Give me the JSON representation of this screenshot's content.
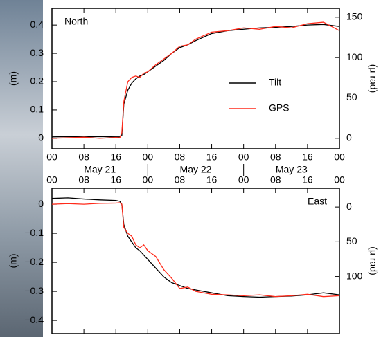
{
  "chart_data": [
    {
      "type": "line",
      "title": "North",
      "ylabel": "(m)",
      "y2label": "(μ rad)",
      "x": [
        0,
        4,
        8,
        12,
        16,
        17,
        17.5,
        18,
        19,
        20,
        21,
        22,
        23,
        24,
        26,
        28,
        30,
        32,
        34,
        36,
        40,
        44,
        48,
        52,
        56,
        60,
        64,
        68,
        72
      ],
      "xlim": [
        0,
        72
      ],
      "xticks": [
        {
          "value": 0,
          "label": "00"
        },
        {
          "value": 8,
          "label": "08"
        },
        {
          "value": 16,
          "label": "16"
        },
        {
          "value": 24,
          "label": "00"
        },
        {
          "value": 32,
          "label": "08"
        },
        {
          "value": 40,
          "label": "16"
        },
        {
          "value": 48,
          "label": "00"
        },
        {
          "value": 56,
          "label": "08"
        },
        {
          "value": 64,
          "label": "16"
        },
        {
          "value": 72,
          "label": "00"
        }
      ],
      "date_labels": [
        {
          "value": 12,
          "label": "May 21"
        },
        {
          "value": 36,
          "label": "May 22"
        },
        {
          "value": 60,
          "label": "May 23"
        }
      ],
      "ylim": [
        -0.037,
        0.459
      ],
      "yticks": [
        0,
        0.1,
        0.2,
        0.3,
        0.4
      ],
      "y2lim": [
        -13,
        161
      ],
      "y2ticks": [
        0,
        50,
        100,
        150
      ],
      "legend": "center-right",
      "series": [
        {
          "name": "Tilt",
          "color": "#000000",
          "values": [
            0.005,
            0.006,
            0.005,
            0.006,
            0.005,
            0.005,
            0.01,
            0.12,
            0.17,
            0.195,
            0.21,
            0.22,
            0.225,
            0.235,
            0.255,
            0.275,
            0.3,
            0.32,
            0.33,
            0.345,
            0.37,
            0.38,
            0.385,
            0.39,
            0.392,
            0.395,
            0.4,
            0.402,
            0.395
          ]
        },
        {
          "name": "GPS",
          "color": "#ff2a1a",
          "values": [
            0.0,
            0.002,
            0.004,
            0.0,
            0.003,
            0.002,
            0.02,
            0.13,
            0.2,
            0.215,
            0.22,
            0.215,
            0.23,
            0.235,
            0.26,
            0.28,
            0.3,
            0.325,
            0.33,
            0.35,
            0.375,
            0.38,
            0.39,
            0.385,
            0.395,
            0.39,
            0.405,
            0.41,
            0.38
          ]
        }
      ]
    },
    {
      "type": "line",
      "title": "East",
      "ylabel": "(m)",
      "y2label": "(μ rad)",
      "x": [
        0,
        4,
        8,
        12,
        16,
        17,
        17.5,
        18,
        19,
        20,
        21,
        22,
        23,
        24,
        26,
        28,
        30,
        32,
        34,
        36,
        40,
        44,
        48,
        52,
        56,
        60,
        64,
        68,
        72
      ],
      "xlim": [
        0,
        72
      ],
      "xticks": [
        {
          "value": 0,
          "label": "00"
        },
        {
          "value": 8,
          "label": "08"
        },
        {
          "value": 16,
          "label": "16"
        },
        {
          "value": 24,
          "label": "00"
        },
        {
          "value": 32,
          "label": "08"
        },
        {
          "value": 40,
          "label": "16"
        },
        {
          "value": 48,
          "label": "00"
        },
        {
          "value": 56,
          "label": "08"
        },
        {
          "value": 64,
          "label": "16"
        },
        {
          "value": 72,
          "label": "00"
        }
      ],
      "ylim": [
        -0.445,
        0.055
      ],
      "yticks": [
        {
          "value": -0.4,
          "label": "−0.4"
        },
        {
          "value": -0.3,
          "label": "−0.3"
        },
        {
          "value": -0.2,
          "label": "−0.2"
        },
        {
          "value": -0.1,
          "label": "−0.1"
        },
        0
      ],
      "y2lim": [
        182,
        -27
      ],
      "y2ticks": [
        0,
        50,
        100
      ],
      "series": [
        {
          "name": "Tilt",
          "color": "#000000",
          "values": [
            0.02,
            0.022,
            0.018,
            0.015,
            0.013,
            0.01,
            0.0,
            -0.07,
            -0.11,
            -0.13,
            -0.15,
            -0.16,
            -0.175,
            -0.19,
            -0.22,
            -0.25,
            -0.27,
            -0.28,
            -0.29,
            -0.295,
            -0.305,
            -0.315,
            -0.318,
            -0.32,
            -0.318,
            -0.316,
            -0.312,
            -0.305,
            -0.312
          ]
        },
        {
          "name": "GPS",
          "color": "#ff2a1a",
          "values": [
            0.0,
            0.002,
            0.0,
            0.003,
            0.004,
            0.005,
            0.0,
            -0.08,
            -0.1,
            -0.11,
            -0.14,
            -0.15,
            -0.14,
            -0.16,
            -0.18,
            -0.225,
            -0.255,
            -0.29,
            -0.285,
            -0.3,
            -0.31,
            -0.312,
            -0.315,
            -0.312,
            -0.318,
            -0.315,
            -0.31,
            -0.318,
            -0.315
          ]
        }
      ]
    }
  ]
}
